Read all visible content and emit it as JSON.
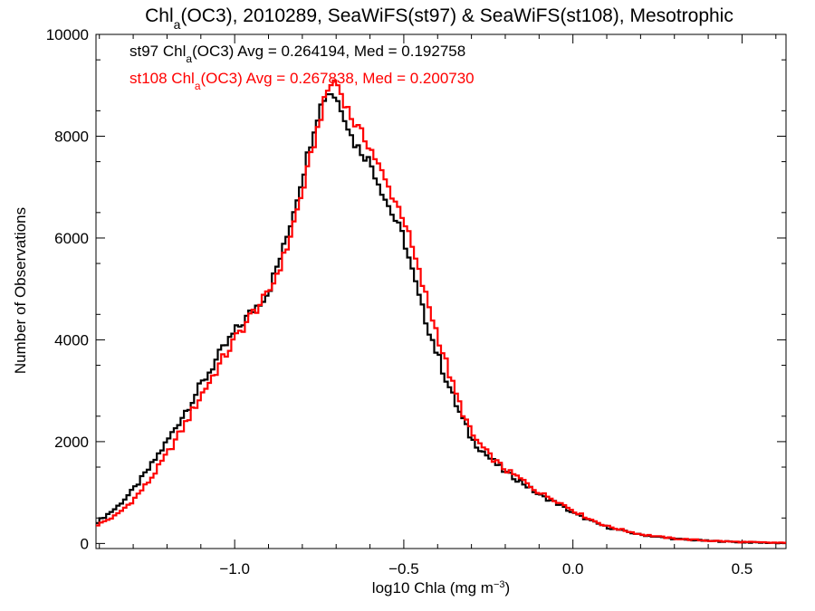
{
  "chart_data": {
    "type": "line",
    "title": {
      "prefix": "Chl",
      "sub": "a",
      "suffix": "(OC3), 2010289, SeaWiFS(st97) & SeaWiFS(st108), Mesotrophic"
    },
    "xlabel": {
      "prefix": "log10 Chla (mg m",
      "sup": "−3",
      "suffix": ")"
    },
    "ylabel": "Number of Observations",
    "xlim": [
      -1.41,
      0.63
    ],
    "ylim": [
      -100,
      10000
    ],
    "xticks": [
      {
        "value": -1.0,
        "label": "−1.0"
      },
      {
        "value": -0.5,
        "label": "−0.5"
      },
      {
        "value": 0.0,
        "label": "0.0"
      },
      {
        "value": 0.5,
        "label": "0.5"
      }
    ],
    "yticks": [
      {
        "value": 0,
        "label": "0"
      },
      {
        "value": 2000,
        "label": "2000"
      },
      {
        "value": 4000,
        "label": "4000"
      },
      {
        "value": 6000,
        "label": "6000"
      },
      {
        "value": 8000,
        "label": "8000"
      },
      {
        "value": 10000,
        "label": "10000"
      }
    ],
    "grid": false,
    "annotations": [
      {
        "prefix": "st97 Chl",
        "sub": "a",
        "suffix": "(OC3) Avg = 0.264194, Med = 0.192758",
        "color": "#000000"
      },
      {
        "prefix": "st108 Chl",
        "sub": "a",
        "suffix": "(OC3) Avg = 0.267838, Med = 0.200730",
        "color": "#ff0000"
      }
    ],
    "series": [
      {
        "color": "#000000",
        "x": [
          -1.41,
          -1.35,
          -1.3,
          -1.25,
          -1.2,
          -1.15,
          -1.1,
          -1.05,
          -1.0,
          -0.95,
          -0.9,
          -0.85,
          -0.8,
          -0.76,
          -0.74,
          -0.72,
          -0.7,
          -0.68,
          -0.65,
          -0.6,
          -0.55,
          -0.5,
          -0.45,
          -0.4,
          -0.35,
          -0.3,
          -0.25,
          -0.2,
          -0.15,
          -0.1,
          -0.05,
          0.0,
          0.05,
          0.1,
          0.2,
          0.3,
          0.4,
          0.5,
          0.6,
          0.63
        ],
        "y": [
          400,
          700,
          1050,
          1500,
          2000,
          2550,
          3100,
          3650,
          4150,
          4550,
          4950,
          5900,
          7200,
          8300,
          8700,
          8900,
          8750,
          8500,
          7900,
          7500,
          6700,
          6000,
          4700,
          3700,
          2800,
          2050,
          1700,
          1400,
          1200,
          950,
          800,
          600,
          450,
          320,
          170,
          90,
          50,
          25,
          12,
          8
        ]
      },
      {
        "color": "#ff0000",
        "x": [
          -1.41,
          -1.35,
          -1.3,
          -1.25,
          -1.2,
          -1.15,
          -1.1,
          -1.05,
          -1.0,
          -0.95,
          -0.9,
          -0.85,
          -0.8,
          -0.76,
          -0.74,
          -0.72,
          -0.7,
          -0.68,
          -0.65,
          -0.6,
          -0.55,
          -0.5,
          -0.45,
          -0.4,
          -0.35,
          -0.3,
          -0.25,
          -0.2,
          -0.15,
          -0.1,
          -0.05,
          0.0,
          0.05,
          0.1,
          0.2,
          0.3,
          0.4,
          0.5,
          0.6,
          0.63
        ],
        "y": [
          350,
          550,
          850,
          1250,
          1750,
          2300,
          2900,
          3450,
          4000,
          4500,
          4900,
          5700,
          6900,
          8000,
          8550,
          9000,
          9100,
          8750,
          8300,
          7800,
          7050,
          6400,
          5200,
          4100,
          3000,
          2150,
          1750,
          1450,
          1250,
          1000,
          850,
          650,
          480,
          340,
          180,
          95,
          55,
          28,
          14,
          8
        ]
      }
    ]
  }
}
